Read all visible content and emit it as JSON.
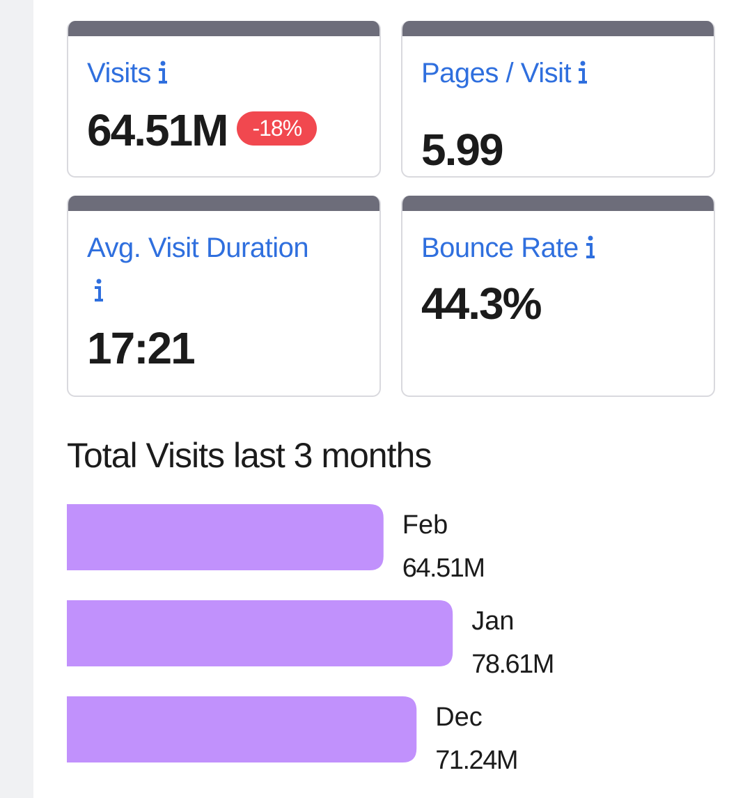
{
  "cards": [
    {
      "title": "Visits",
      "value": "64.51M",
      "badge": "-18%"
    },
    {
      "title": "Pages / Visit",
      "value": "5.99"
    },
    {
      "title": "Avg. Visit Duration",
      "value": "17:21"
    },
    {
      "title": "Bounce Rate",
      "value": "44.3%"
    }
  ],
  "chart_data": {
    "type": "bar",
    "orientation": "horizontal",
    "title": "Total Visits last 3 months",
    "categories": [
      "Feb",
      "Jan",
      "Dec"
    ],
    "values": [
      64.51,
      78.61,
      71.24
    ],
    "value_labels": [
      "64.51M",
      "78.61M",
      "71.24M"
    ],
    "color": "#c191fc"
  }
}
